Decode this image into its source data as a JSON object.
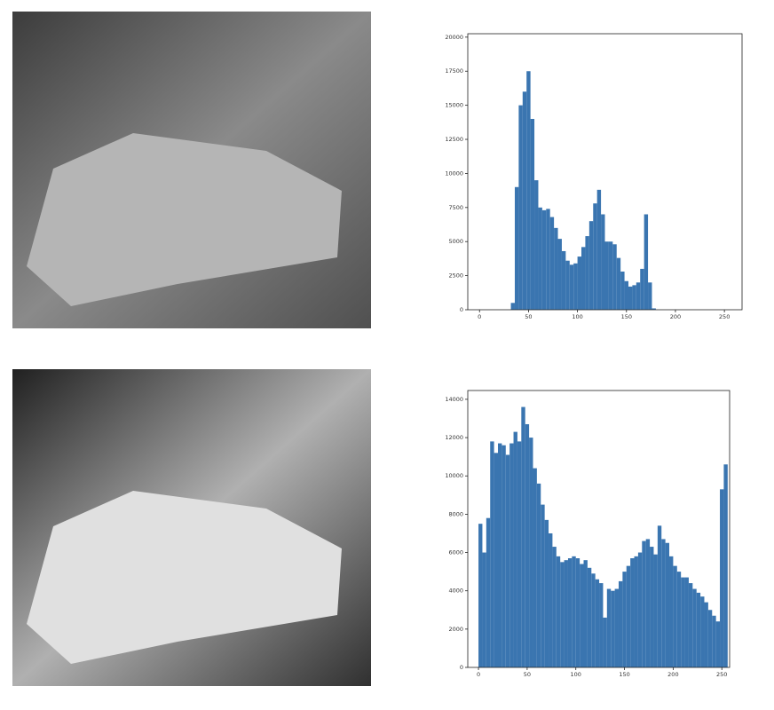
{
  "chart_data": [
    {
      "type": "histogram",
      "color": "#3a75b0",
      "bins": [
        0,
        4,
        8,
        12,
        16,
        20,
        24,
        28,
        32,
        36,
        40,
        44,
        48,
        52,
        56,
        60,
        64,
        68,
        72,
        76,
        80,
        84,
        88,
        92,
        96,
        100,
        104,
        108,
        112,
        116,
        120,
        124,
        128,
        132,
        136,
        140,
        144,
        148,
        152,
        156,
        160,
        164,
        168,
        172,
        176,
        180,
        184,
        188,
        192,
        196,
        200,
        204,
        208,
        212,
        216,
        220,
        224,
        228,
        232,
        236,
        240,
        244,
        248,
        252,
        256
      ],
      "counts": [
        0,
        0,
        0,
        0,
        0,
        0,
        0,
        0,
        500,
        9000,
        15000,
        16000,
        17500,
        14000,
        9500,
        7500,
        7300,
        7400,
        6800,
        6000,
        5200,
        4300,
        3600,
        3300,
        3400,
        3900,
        4600,
        5400,
        6500,
        7800,
        8800,
        7000,
        5000,
        5000,
        4800,
        3800,
        2800,
        2100,
        1700,
        1800,
        2000,
        3000,
        7000,
        2000,
        100,
        0,
        0,
        0,
        0,
        0,
        0,
        0,
        0,
        0,
        0,
        0,
        0,
        0,
        0,
        0,
        0,
        0,
        0,
        0
      ],
      "xlim": [
        -12,
        268
      ],
      "ylim": [
        0,
        20250
      ],
      "xticks": [
        0,
        50,
        100,
        150,
        200,
        250
      ],
      "yticks": [
        0,
        2500,
        5000,
        7500,
        10000,
        12500,
        15000,
        17500,
        20000
      ]
    },
    {
      "type": "histogram",
      "color": "#3a75b0",
      "bins": [
        0,
        4,
        8,
        12,
        16,
        20,
        24,
        28,
        32,
        36,
        40,
        44,
        48,
        52,
        56,
        60,
        64,
        68,
        72,
        76,
        80,
        84,
        88,
        92,
        96,
        100,
        104,
        108,
        112,
        116,
        120,
        124,
        128,
        132,
        136,
        140,
        144,
        148,
        152,
        156,
        160,
        164,
        168,
        172,
        176,
        180,
        184,
        188,
        192,
        196,
        200,
        204,
        208,
        212,
        216,
        220,
        224,
        228,
        232,
        236,
        240,
        244,
        248,
        252,
        256
      ],
      "counts": [
        7500,
        6000,
        7800,
        11800,
        11200,
        11700,
        11600,
        11100,
        11700,
        12300,
        11800,
        13600,
        12700,
        12000,
        10400,
        9600,
        8500,
        7700,
        7000,
        6300,
        5800,
        5500,
        5600,
        5700,
        5800,
        5700,
        5400,
        5600,
        5200,
        4900,
        4600,
        4400,
        2600,
        4100,
        4000,
        4100,
        4500,
        5000,
        5300,
        5700,
        5800,
        6000,
        6600,
        6700,
        6300,
        5900,
        7400,
        6700,
        6500,
        5800,
        5300,
        5000,
        4700,
        4700,
        4400,
        4100,
        3900,
        3700,
        3400,
        3000,
        2700,
        2400,
        9300,
        10600
      ],
      "xlim": [
        -11,
        258
      ],
      "ylim": [
        0,
        14460
      ],
      "xticks": [
        0,
        50,
        100,
        150,
        200,
        250
      ],
      "yticks": [
        0,
        2000,
        4000,
        6000,
        8000,
        10000,
        12000,
        14000
      ]
    }
  ]
}
